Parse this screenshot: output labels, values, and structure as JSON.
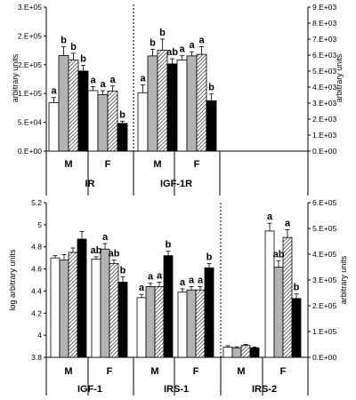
{
  "chart_data": [
    {
      "type": "bar",
      "panel": "top",
      "treatment_patterns": [
        "white",
        "gray",
        "hatched",
        "black"
      ],
      "colors": {
        "white": "#ffffff",
        "gray": "#b3b3b3",
        "black": "#000000",
        "outline": "#000000"
      },
      "left_axis": {
        "label": "arbitrary units",
        "ylim": [
          0,
          250000
        ],
        "ticks": [
          0,
          50000,
          100000,
          150000,
          200000,
          250000
        ],
        "tick_labels": [
          "0.E+00",
          "5.E+04",
          "1.E+05",
          "2.E+05",
          "2.E+05",
          "3.E+05"
        ]
      },
      "right_axis": {
        "label": "arbitrary units",
        "ylim": [
          0,
          9000
        ],
        "ticks": [
          0,
          1000,
          2000,
          3000,
          4000,
          5000,
          6000,
          7000,
          8000,
          9000
        ],
        "tick_labels": [
          "0.E+00",
          "1.E+03",
          "2.E+03",
          "3.E+03",
          "4.E+03",
          "5.E+03",
          "6.E+03",
          "7.E+03",
          "8.E+03",
          "9.E+03"
        ]
      },
      "genes": [
        {
          "name": "IR",
          "axis": "left",
          "groups": [
            {
              "sex": "M",
              "values": [
                84000,
                166000,
                158000,
                139000
              ],
              "errors": [
                9000,
                15000,
                12000,
                10000
              ],
              "sig": [
                "a",
                "b",
                "b",
                "b"
              ]
            },
            {
              "sex": "F",
              "values": [
                105000,
                98000,
                104000,
                48000
              ],
              "errors": [
                7000,
                7000,
                9000,
                4000
              ],
              "sig": [
                "a",
                "a",
                "a",
                "b"
              ]
            }
          ]
        },
        {
          "name": "IGF-1R",
          "axis": "right",
          "groups": [
            {
              "sex": "M",
              "values": [
                3650,
                5950,
                6300,
                5450
              ],
              "errors": [
                480,
                420,
                700,
                320
              ],
              "sig": [
                "a",
                "b",
                "b",
                "ab"
              ]
            },
            {
              "sex": "F",
              "values": [
                5700,
                5950,
                6050,
                3150
              ],
              "errors": [
                260,
                260,
                480,
                420
              ],
              "sig": [
                "a",
                "a",
                "a",
                "b"
              ]
            }
          ]
        }
      ],
      "x_groups": [
        "M",
        "F",
        "M",
        "F"
      ],
      "x_labels": [
        "IR",
        "IGF-1R"
      ]
    },
    {
      "type": "bar",
      "panel": "bottom",
      "treatment_patterns": [
        "white",
        "gray",
        "hatched",
        "black"
      ],
      "colors": {
        "white": "#ffffff",
        "gray": "#b3b3b3",
        "black": "#000000",
        "outline": "#000000"
      },
      "left_axis": {
        "label": "log arbitrary units",
        "ylim": [
          3.8,
          5.2
        ],
        "ticks": [
          3.8,
          4.0,
          4.2,
          4.4,
          4.6,
          4.8,
          5.0,
          5.2
        ],
        "tick_labels": [
          "3.8",
          "4",
          "4.2",
          "4.4",
          "4.6",
          "4.8",
          "5",
          "5.2"
        ]
      },
      "right_axis": {
        "label": "arbitrary units",
        "ylim": [
          0,
          600000
        ],
        "ticks": [
          0,
          100000,
          200000,
          300000,
          400000,
          500000,
          600000
        ],
        "tick_labels": [
          "0.E+00",
          "1.E+05",
          "2.E+05",
          "3.E+05",
          "4.E+05",
          "5.E+05",
          "6.E+05"
        ]
      },
      "genes": [
        {
          "name": "IGF-1",
          "axis": "left",
          "groups": [
            {
              "sex": "M",
              "values": [
                4.7,
                4.68,
                4.75,
                4.87
              ],
              "errors": [
                0.02,
                0.05,
                0.04,
                0.07
              ],
              "sig": []
            },
            {
              "sex": "F",
              "values": [
                4.69,
                4.78,
                4.65,
                4.48
              ],
              "errors": [
                0.02,
                0.05,
                0.03,
                0.05
              ],
              "sig": [
                "ab",
                "a",
                "ab",
                "b"
              ]
            }
          ]
        },
        {
          "name": "IRS-1",
          "axis": "left",
          "groups": [
            {
              "sex": "M",
              "values": [
                4.34,
                4.44,
                4.44,
                4.72
              ],
              "errors": [
                0.03,
                0.03,
                0.04,
                0.04
              ],
              "sig": [
                "a",
                "a",
                "a",
                "b"
              ]
            },
            {
              "sex": "F",
              "values": [
                4.39,
                4.41,
                4.41,
                4.61
              ],
              "errors": [
                0.03,
                0.03,
                0.03,
                0.04
              ],
              "sig": [
                "a",
                "a",
                "a",
                "b"
              ]
            }
          ]
        },
        {
          "name": "IRS-2",
          "axis": "right",
          "groups": [
            {
              "sex": "M",
              "values": [
                40000,
                37000,
                46000,
                37000
              ],
              "errors": [
                5000,
                4000,
                4000,
                3000
              ],
              "sig": []
            },
            {
              "sex": "F",
              "values": [
                490000,
                350000,
                465000,
                228000
              ],
              "errors": [
                30000,
                25000,
                30000,
                18000
              ],
              "sig": [
                "a",
                "ab",
                "a",
                "b"
              ]
            }
          ]
        }
      ],
      "x_groups": [
        "M",
        "F",
        "M",
        "F",
        "M",
        "F"
      ],
      "x_labels": [
        "IGF-1",
        "IRS-1",
        "IRS-2"
      ]
    }
  ]
}
